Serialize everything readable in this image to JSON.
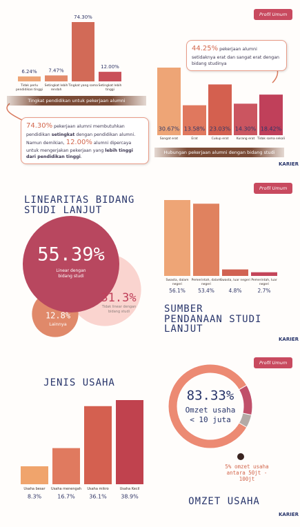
{
  "badge": "Profil Umum",
  "logo": "KARIER",
  "chart_data": [
    {
      "type": "bar",
      "title": "Tingkat pendidikan untuk pekerjaan alumni",
      "categories": [
        "Tidak perlu pendidikan tinggi",
        "Setingkat lebih rendah",
        "Tingkat yang sama",
        "Setingkat lebih tinggi"
      ],
      "values": [
        6.24,
        7.47,
        74.3,
        12.0
      ],
      "value_labels": [
        "6.24%",
        "7.47%",
        "74.30%",
        "12.00%"
      ],
      "colors": [
        "#eea576",
        "#e38a6a",
        "#d26a57",
        "#c9505a"
      ],
      "note": [
        "74.30%",
        " pekerjaan alumni membutuhkan pendidikan ",
        "setingkat",
        " dengan pendidikan alumni. Namun demikian, ",
        "12.00%",
        " alumni dipercaya untuk mengerjakan pekerjaan yang ",
        "lebih tinggi dari pendidikan tinggi",
        "."
      ]
    },
    {
      "type": "bar",
      "title": "Hubungan pekerjaan alumni dengan bidang studi",
      "categories": [
        "Sangat erat",
        "Erat",
        "Cukup erat",
        "Kurang erat",
        "Tidak sama sekali"
      ],
      "values": [
        30.67,
        13.58,
        23.03,
        14.3,
        18.42
      ],
      "value_labels": [
        "30.67%",
        "13.58%",
        "23.03%",
        "14.30%",
        "18.42%"
      ],
      "colors": [
        "#eea576",
        "#e0785e",
        "#d4604f",
        "#cb5560",
        "#c0405a"
      ],
      "note": [
        "44.25%",
        " pekerjaan alumni setidaknya erat dan sangat erat dengan bidang studinya"
      ]
    },
    {
      "type": "bubble",
      "title": "LINEARITAS BIDANG STUDI LANJUT",
      "categories": [
        "Linear dengan bidang studi",
        "Tidak linear dengan bidang studi",
        "Lainnya"
      ],
      "values": [
        55.39,
        31.3,
        12.8
      ],
      "value_labels": [
        "55.39%",
        "31.3%",
        "12.8%"
      ],
      "colors": [
        "#b8475f",
        "#fad4cf",
        "#e0896a"
      ]
    },
    {
      "type": "bar",
      "title": "SUMBER PENDANAAN STUDI LANJUT",
      "categories": [
        "Swasta, dalam negeri",
        "Pemerintah, dalam negeri",
        "Swasta, luar negeri",
        "Pemerintah, luar negeri"
      ],
      "values": [
        56.1,
        53.4,
        4.8,
        2.7
      ],
      "value_labels": [
        "56.1%",
        "53.4%",
        "4.8%",
        "2.7%"
      ],
      "colors": [
        "#eea576",
        "#e0825f",
        "#d16252",
        "#c4465a"
      ]
    },
    {
      "type": "bar",
      "title": "JENIS USAHA",
      "categories": [
        "Usaha besar",
        "Usaha menengah",
        "Usaha mikro",
        "Usaha Kecil"
      ],
      "values": [
        8.3,
        16.7,
        36.1,
        38.9
      ],
      "value_labels": [
        "8.3%",
        "16.7%",
        "36.1%",
        "38.9%"
      ],
      "colors": [
        "#f0a46c",
        "#e07a5f",
        "#d46050",
        "#c0424e"
      ]
    },
    {
      "type": "donut",
      "title": "OMZET USAHA",
      "categories": [
        "Omzet usaha < 10 juta",
        null,
        "omzet usaha antara 50jt - 100jt"
      ],
      "values": [
        83.33,
        11.67,
        5
      ],
      "value_labels": [
        "83.33%",
        null,
        "5%"
      ],
      "colors": [
        "#ec8a73",
        "#c0506a",
        "#b3aaa6"
      ]
    }
  ]
}
